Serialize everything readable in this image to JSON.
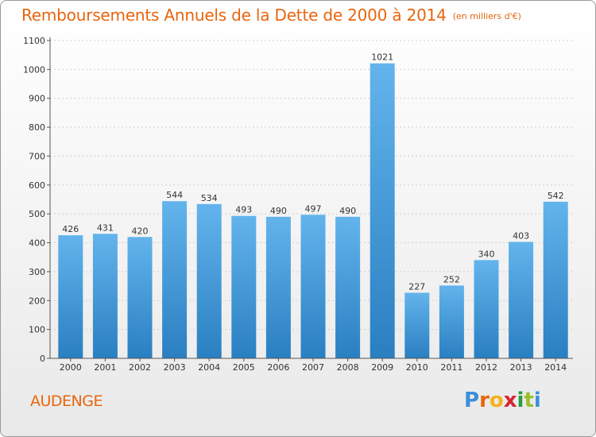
{
  "title": "Remboursements Annuels de la Dette de 2000 à 2014",
  "unit_note": "(en milliers d'€)",
  "commune": "AUDENGE",
  "logo": {
    "letters": [
      "P",
      "r",
      "o",
      "x",
      "i",
      "t",
      "i"
    ],
    "colors": [
      "#3a8fd8",
      "#e8650e",
      "#f2b21a",
      "#d8242f",
      "#2e9a3c",
      "#9bbf2a",
      "#3a8fd8"
    ]
  },
  "colors": {
    "bar_light": "#63b4ec",
    "bar_dark": "#2a7fc1",
    "accent": "#e8650e"
  },
  "chart_data": {
    "type": "bar",
    "categories": [
      "2000",
      "2001",
      "2002",
      "2003",
      "2004",
      "2005",
      "2006",
      "2007",
      "2008",
      "2009",
      "2010",
      "2011",
      "2012",
      "2013",
      "2014"
    ],
    "values": [
      426,
      431,
      420,
      544,
      534,
      493,
      490,
      497,
      490,
      1021,
      227,
      252,
      340,
      403,
      542
    ],
    "ylim": [
      0,
      1100
    ],
    "yticks": [
      0,
      100,
      200,
      300,
      400,
      500,
      600,
      700,
      800,
      900,
      1000,
      1100
    ],
    "grid": true,
    "legend": "none"
  }
}
